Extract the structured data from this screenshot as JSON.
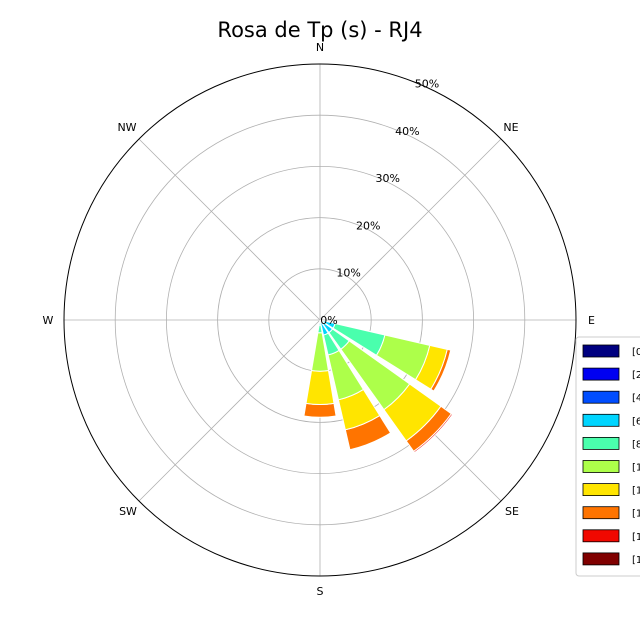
{
  "chart_data": {
    "type": "windrose",
    "title": "Rosa de Tp (s) - RJ4",
    "directions": [
      "N",
      "NE",
      "E",
      "SE",
      "S",
      "SW",
      "W",
      "NW"
    ],
    "radial_ticks": [
      "0%",
      "10%",
      "20%",
      "30%",
      "40%",
      "50%"
    ],
    "radial_tick_values": [
      0,
      10,
      20,
      30,
      40,
      50
    ],
    "rmax": 50,
    "grid": true,
    "legend_position": "right",
    "bins": [
      {
        "label": "[0",
        "color": "#000080"
      },
      {
        "label": "[2",
        "color": "#0000f1"
      },
      {
        "label": "[4",
        "color": "#004dff"
      },
      {
        "label": "[6",
        "color": "#00d5ff"
      },
      {
        "label": "[8",
        "color": "#4affad"
      },
      {
        "label": "[1",
        "color": "#adff4a"
      },
      {
        "label": "[1",
        "color": "#ffe500"
      },
      {
        "label": "[1",
        "color": "#ff7400"
      },
      {
        "label": "[1",
        "color": "#f10800"
      },
      {
        "label": "[1",
        "color": "#800000"
      }
    ],
    "sectors": [
      {
        "direction_deg": 112.5,
        "cumulative": [
          0,
          0,
          0.5,
          3,
          13,
          22,
          25.5,
          26.2,
          26.2,
          26.2
        ]
      },
      {
        "direction_deg": 135,
        "cumulative": [
          0,
          0,
          0.5,
          3,
          7,
          21.5,
          29,
          31.5,
          31.8,
          31.8
        ]
      },
      {
        "direction_deg": 157.5,
        "cumulative": [
          0,
          0,
          0.5,
          3,
          7,
          16,
          22,
          26,
          26,
          26
        ]
      },
      {
        "direction_deg": 180,
        "cumulative": [
          0,
          0,
          0,
          1,
          2.5,
          10,
          16.5,
          19,
          19,
          19
        ]
      }
    ]
  }
}
